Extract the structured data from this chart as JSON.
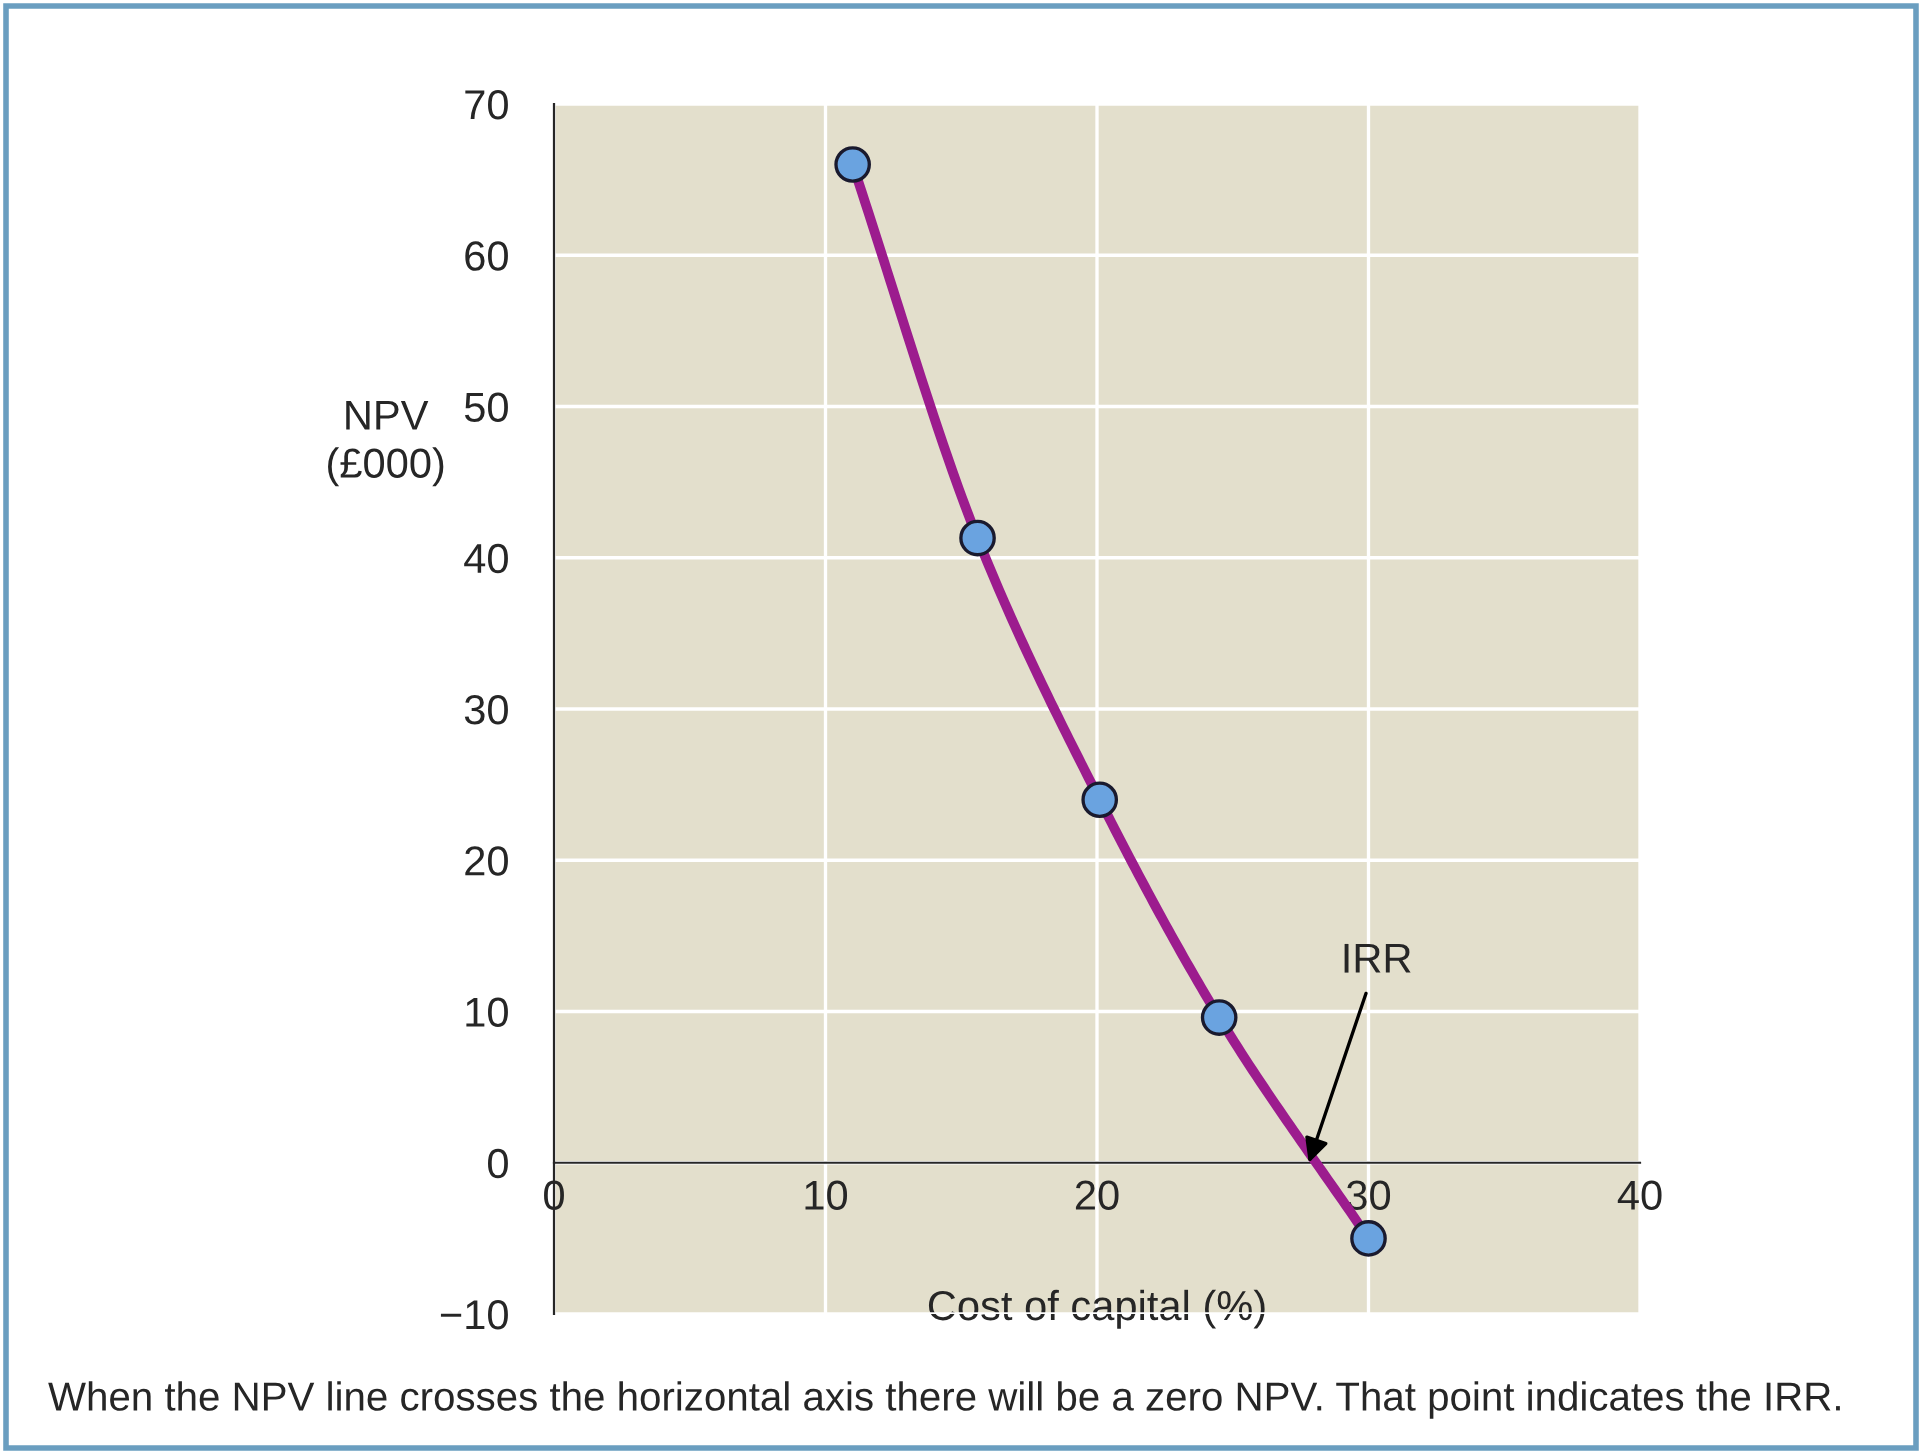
{
  "chart_data": {
    "type": "line",
    "xlabel": "Cost of capital (%)",
    "ylabel": "NPV\n(£000)",
    "x": [
      11,
      15.6,
      20.1,
      24.5,
      30
    ],
    "series": [
      {
        "color": "#9c1c8e",
        "values": [
          66,
          41.3,
          24,
          9.6,
          -5
        ]
      }
    ],
    "marker": "circle",
    "grid": true,
    "xlim": [
      0,
      40
    ],
    "ylim": [
      -10,
      70
    ],
    "xticks": [
      0,
      10,
      20,
      30,
      40
    ],
    "yticks": [
      {
        "value": -10,
        "label": "−10"
      },
      0,
      10,
      20,
      30,
      40,
      50,
      60,
      70
    ],
    "annotations": [
      {
        "text": "IRR",
        "x": 27.8,
        "y": 0
      },
      "When the NPV line crosses the horizontal axis there will be a zero NPV. That point indicates the IRR."
    ]
  }
}
